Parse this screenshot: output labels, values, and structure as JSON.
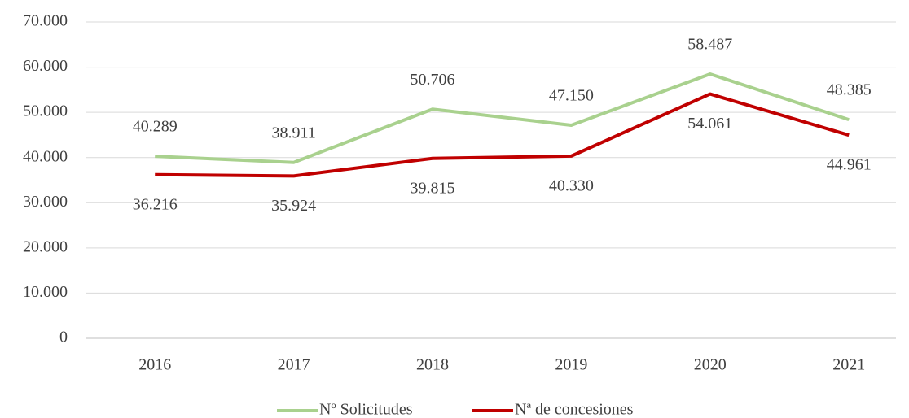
{
  "chart_data": {
    "type": "line",
    "categories": [
      "2016",
      "2017",
      "2018",
      "2019",
      "2020",
      "2021"
    ],
    "series": [
      {
        "name": "Nº Solicitudes",
        "color": "#a9d18e",
        "values": [
          40289,
          38911,
          50706,
          47150,
          58487,
          48385
        ],
        "value_labels": [
          "40.289",
          "38.911",
          "50.706",
          "47.150",
          "58.487",
          "48.385"
        ]
      },
      {
        "name": "Nª de concesiones",
        "color": "#c00000",
        "values": [
          36216,
          35924,
          39815,
          40330,
          54061,
          44961
        ],
        "value_labels": [
          "36.216",
          "35.924",
          "39.815",
          "40.330",
          "54.061",
          "44.961"
        ]
      }
    ],
    "ylim": [
      0,
      70000
    ],
    "yticks": [
      0,
      {
        "value": 10000,
        "label": "10.000"
      },
      {
        "value": 20000,
        "label": "20.000"
      },
      {
        "value": 30000,
        "label": "30.000"
      },
      {
        "value": 40000,
        "label": "40.000"
      },
      {
        "value": 50000,
        "label": "50.000"
      },
      {
        "value": 60000,
        "label": "60.000"
      },
      {
        "value": 70000,
        "label": "70.000"
      }
    ],
    "grid": true,
    "legend": "bottom"
  }
}
